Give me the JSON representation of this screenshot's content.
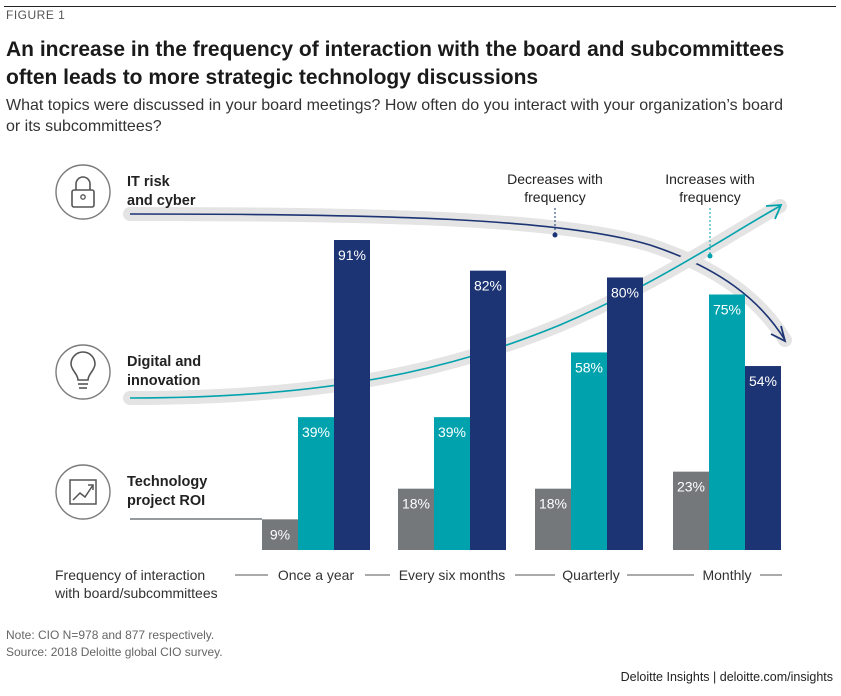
{
  "figure_label": "FIGURE 1",
  "title": "An increase in the frequency of interaction with the board and subcommittees often leads to more strategic technology discussions",
  "subtitle": "What topics were discussed in your board meetings? How often do you interact with your organization’s board or its subcommittees?",
  "note": "Note: CIO N=978 and 877 respectively.",
  "source": "Source: 2018 Deloitte global CIO survey.",
  "footer": "Deloitte Insights | deloitte.com/insights",
  "annotations": {
    "decreases": [
      "Decreases with",
      "frequency"
    ],
    "increases": [
      "Increases with",
      "frequency"
    ]
  },
  "icons": [
    "lock-icon",
    "lightbulb-icon",
    "trend-chart-icon"
  ],
  "chart_data": {
    "type": "bar",
    "xlabel": [
      "Frequency of interaction",
      "with board/subcommittees"
    ],
    "categories": [
      "Once a year",
      "Every six months",
      "Quarterly",
      "Monthly"
    ],
    "ylim": [
      0,
      100
    ],
    "series": [
      {
        "name": "Technology project ROI",
        "label_lines": [
          "Technology",
          "project ROI"
        ],
        "color": "#75787b",
        "values": [
          9,
          18,
          18,
          23
        ]
      },
      {
        "name": "Digital and innovation",
        "label_lines": [
          "Digital and",
          "innovation"
        ],
        "color": "#00a3ad",
        "values": [
          39,
          39,
          58,
          75
        ]
      },
      {
        "name": "IT risk and cyber",
        "label_lines": [
          "IT risk",
          "and cyber"
        ],
        "color": "#1c3473",
        "values": [
          91,
          82,
          80,
          54
        ]
      }
    ],
    "value_suffix": "%"
  }
}
